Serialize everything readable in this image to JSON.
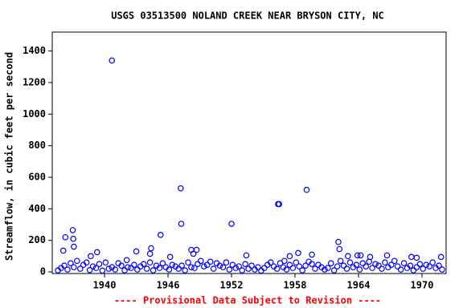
{
  "chart_data": {
    "type": "scatter",
    "title": "USGS 03513500 NOLAND CREEK NEAR BRYSON CITY, NC",
    "y_label": "Streamflow, in cubic feet per second",
    "footer": "---- Provisional Data Subject to Revision ----",
    "color": "#0000ff",
    "footer_color": "#ff0000",
    "xlim": [
      1935.06,
      1972.28
    ],
    "xticks": [
      1940,
      1946,
      1952,
      1958,
      1964,
      1970
    ],
    "ylim": [
      -10,
      1520
    ],
    "yticks": [
      0,
      200,
      400,
      600,
      800,
      1000,
      1200,
      1400
    ],
    "x": [
      1940.7,
      1936.1,
      1936.3,
      1937.0,
      1937.05,
      1937.1,
      1938.7,
      1939.3,
      1942.1,
      1943.0,
      1944.3,
      1944.4,
      1945.3,
      1946.2,
      1947.2,
      1947.25,
      1948.2,
      1948.4,
      1948.7,
      1952.0,
      1953.4,
      1956.4,
      1956.5,
      1957.0,
      1957.5,
      1958.3,
      1959.1,
      1959.6,
      1962.1,
      1962.2,
      1963.0,
      1963.9,
      1964.2,
      1965.1,
      1966.7,
      1969.0,
      1969.5,
      1971.8,
      1935.6,
      1935.9,
      1936.2,
      1936.5,
      1936.8,
      1937.1,
      1937.4,
      1937.7,
      1938.0,
      1938.3,
      1938.6,
      1938.9,
      1939.2,
      1939.5,
      1939.8,
      1940.1,
      1940.4,
      1940.7,
      1941.0,
      1941.3,
      1941.6,
      1941.9,
      1942.2,
      1942.5,
      1942.8,
      1943.1,
      1943.4,
      1943.7,
      1944.0,
      1944.3,
      1944.6,
      1944.9,
      1945.2,
      1945.5,
      1945.8,
      1946.1,
      1946.4,
      1946.7,
      1947.0,
      1947.3,
      1947.6,
      1947.9,
      1948.2,
      1948.5,
      1948.8,
      1949.1,
      1949.4,
      1949.7,
      1950.0,
      1950.3,
      1950.6,
      1950.9,
      1951.2,
      1951.5,
      1951.8,
      1952.1,
      1952.4,
      1952.7,
      1953.0,
      1953.3,
      1953.6,
      1953.9,
      1954.2,
      1954.5,
      1954.8,
      1955.1,
      1955.4,
      1955.7,
      1956.0,
      1956.3,
      1956.6,
      1956.9,
      1957.2,
      1957.5,
      1957.8,
      1958.1,
      1958.4,
      1958.7,
      1959.0,
      1959.3,
      1959.6,
      1959.9,
      1960.2,
      1960.5,
      1960.8,
      1961.1,
      1961.4,
      1961.7,
      1962.0,
      1962.3,
      1962.6,
      1962.9,
      1963.2,
      1963.5,
      1963.8,
      1964.1,
      1964.4,
      1964.7,
      1965.0,
      1965.3,
      1965.6,
      1965.9,
      1966.2,
      1966.5,
      1966.8,
      1967.1,
      1967.4,
      1967.7,
      1968.0,
      1968.3,
      1968.6,
      1968.9,
      1969.2,
      1969.5,
      1969.8,
      1970.1,
      1970.4,
      1970.7,
      1971.0,
      1971.3,
      1971.6,
      1971.9
    ],
    "values": [
      1340,
      135,
      220,
      265,
      210,
      160,
      100,
      125,
      75,
      130,
      115,
      150,
      235,
      95,
      530,
      305,
      140,
      115,
      140,
      305,
      105,
      430,
      430,
      70,
      100,
      120,
      520,
      110,
      190,
      145,
      100,
      105,
      105,
      95,
      105,
      95,
      90,
      95,
      10,
      25,
      40,
      15,
      55,
      30,
      70,
      20,
      45,
      60,
      12,
      35,
      25,
      50,
      8,
      60,
      20,
      30,
      15,
      55,
      40,
      10,
      30,
      25,
      45,
      15,
      35,
      50,
      20,
      60,
      10,
      40,
      25,
      55,
      30,
      15,
      45,
      35,
      20,
      40,
      10,
      60,
      30,
      25,
      50,
      70,
      35,
      45,
      65,
      20,
      55,
      40,
      30,
      60,
      15,
      45,
      25,
      35,
      10,
      50,
      20,
      40,
      15,
      30,
      8,
      25,
      45,
      60,
      35,
      20,
      55,
      30,
      15,
      45,
      25,
      60,
      35,
      10,
      40,
      65,
      50,
      20,
      45,
      30,
      15,
      25,
      55,
      10,
      35,
      70,
      40,
      20,
      60,
      30,
      45,
      15,
      55,
      35,
      65,
      25,
      50,
      40,
      20,
      60,
      30,
      45,
      70,
      35,
      15,
      55,
      25,
      40,
      10,
      30,
      50,
      20,
      45,
      35,
      60,
      25,
      40,
      15
    ]
  }
}
